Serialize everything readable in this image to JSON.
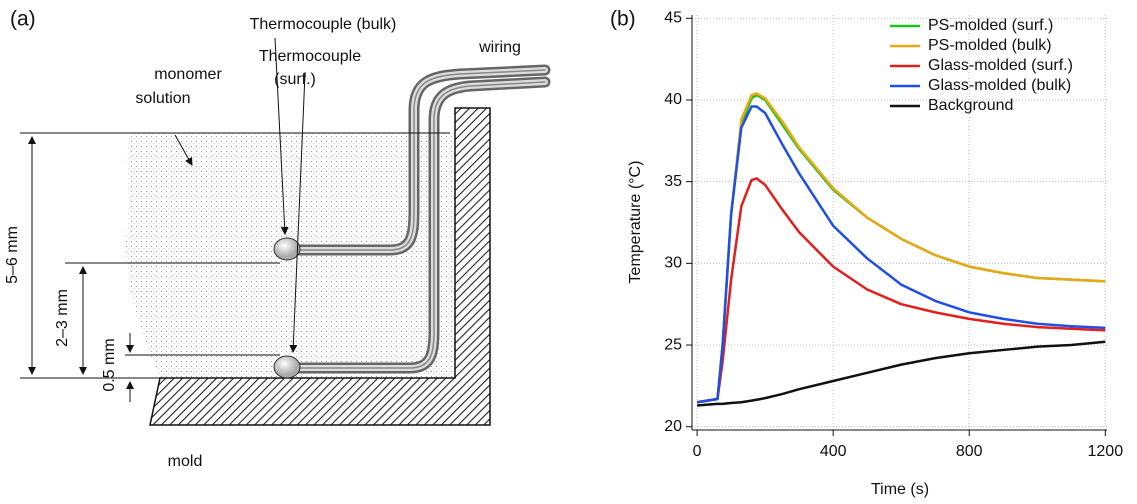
{
  "diagram": {
    "label": "(a)",
    "monomer_label": [
      "monomer",
      "solution"
    ],
    "thermocouple_bulk": "Thermocouple (bulk)",
    "thermocouple_surf": [
      "Thermocouple",
      "(surf.)"
    ],
    "wiring": "wiring",
    "depth_total": "5–6 mm",
    "depth_bulk": "2–3 mm",
    "depth_surf": "0.5 mm",
    "mold": "mold"
  },
  "chart_data": {
    "type": "line",
    "panel_label": "(b)",
    "x_label": "Time (s)",
    "y_label": "Temperature (°C)",
    "x": [
      0,
      30,
      60,
      75,
      100,
      130,
      160,
      175,
      200,
      250,
      300,
      400,
      500,
      600,
      700,
      800,
      900,
      1000,
      1100,
      1200
    ],
    "series": [
      {
        "name": "PS-molded (surf.)",
        "color": "#1fc21f",
        "values": [
          21.5,
          21.6,
          21.7,
          25,
          33,
          38.5,
          40.1,
          40.3,
          40,
          38.5,
          37,
          34.5,
          32.8,
          31.5,
          30.5,
          29.8,
          29.4,
          29.1,
          29.0,
          28.9
        ]
      },
      {
        "name": "PS-molded (bulk)",
        "color": "#e8a817",
        "values": [
          21.5,
          21.6,
          21.7,
          25,
          33,
          38.8,
          40.3,
          40.4,
          40.1,
          38.7,
          37.1,
          34.6,
          32.8,
          31.5,
          30.5,
          29.8,
          29.4,
          29.1,
          29.0,
          28.9
        ]
      },
      {
        "name": "Glass-molded (surf.)",
        "color": "#e0201c",
        "values": [
          21.5,
          21.6,
          21.7,
          24,
          29,
          33.5,
          35.1,
          35.2,
          34.8,
          33.3,
          31.9,
          29.8,
          28.4,
          27.5,
          27.0,
          26.6,
          26.3,
          26.1,
          26.0,
          25.9
        ]
      },
      {
        "name": "Glass-molded (bulk)",
        "color": "#1f4ee8",
        "values": [
          21.5,
          21.6,
          21.7,
          25,
          33,
          38.3,
          39.6,
          39.6,
          39.2,
          37.3,
          35.5,
          32.3,
          30.3,
          28.7,
          27.7,
          27.0,
          26.6,
          26.3,
          26.15,
          26.05
        ]
      },
      {
        "name": "Background",
        "color": "#111111",
        "values": [
          21.3,
          21.35,
          21.4,
          21.4,
          21.45,
          21.5,
          21.6,
          21.65,
          21.75,
          22.0,
          22.3,
          22.8,
          23.3,
          23.8,
          24.2,
          24.5,
          24.7,
          24.9,
          25.0,
          25.2
        ]
      }
    ],
    "xlim": [
      -15,
      1205
    ],
    "ylim": [
      19.8,
      45.2
    ],
    "xticks": [
      0,
      400,
      800,
      1200
    ],
    "yticks": [
      20,
      25,
      30,
      35,
      40,
      45
    ],
    "grid": true,
    "legend": "upper right"
  }
}
